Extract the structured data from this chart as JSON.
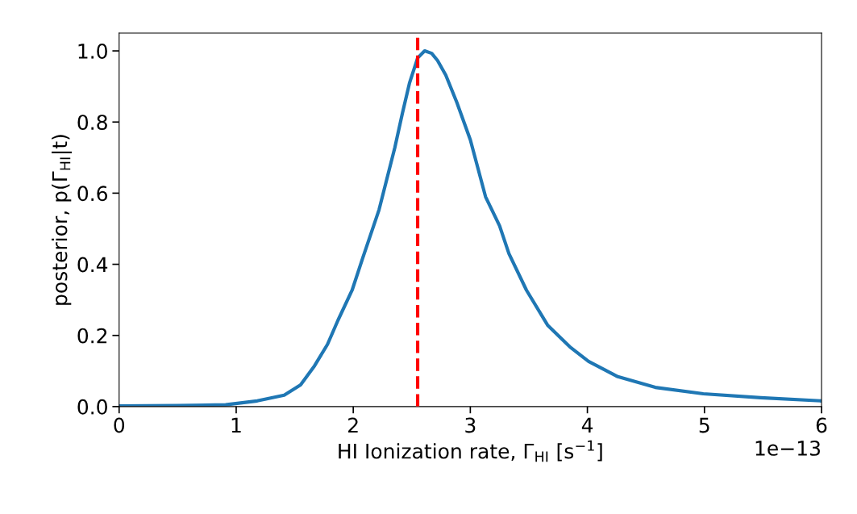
{
  "chart_data": {
    "type": "line",
    "xlabel": "HI Ionization rate, Γ$_{HI}$ [s$^{−1}$]",
    "ylabel": "posterior, p(Γ$_{HI}$|t)",
    "xlim": [
      0,
      6
    ],
    "ylim": [
      0,
      1.05
    ],
    "xticks": [
      0,
      1,
      2,
      3,
      4,
      5,
      6
    ],
    "yticks": [
      {
        "value": 0,
        "label": "0.0"
      },
      0.2,
      0.4,
      0.6,
      0.8,
      {
        "value": 1,
        "label": "1.0"
      }
    ],
    "annotations": [
      "1e−13"
    ],
    "ref_lines": [
      {
        "axis": "x",
        "value": 2.55,
        "label": null,
        "color": "#ff0000",
        "line_style": "dashed"
      }
    ],
    "grid": false,
    "legend": false,
    "marker": "none",
    "line_style": "solid",
    "series": [
      {
        "color": "#1f77b4",
        "x": [
          0,
          0.5,
          0.91,
          1.18,
          1.41,
          1.55,
          1.67,
          1.78,
          1.87,
          1.99,
          2.08,
          2.22,
          2.355,
          2.42,
          2.48,
          2.55,
          2.61,
          2.67,
          2.72,
          2.79,
          2.885,
          3.0,
          3.13,
          3.25,
          3.33,
          3.48,
          3.66,
          3.85,
          4.01,
          4.26,
          4.58,
          4.99,
          5.48,
          6.0
        ],
        "values": [
          0.002,
          0.003,
          0.005,
          0.016,
          0.032,
          0.061,
          0.115,
          0.175,
          0.243,
          0.327,
          0.417,
          0.553,
          0.728,
          0.825,
          0.909,
          0.98,
          1.0,
          0.993,
          0.973,
          0.932,
          0.855,
          0.75,
          0.59,
          0.508,
          0.43,
          0.327,
          0.229,
          0.168,
          0.127,
          0.084,
          0.054,
          0.036,
          0.025,
          0.016
        ]
      }
    ]
  }
}
